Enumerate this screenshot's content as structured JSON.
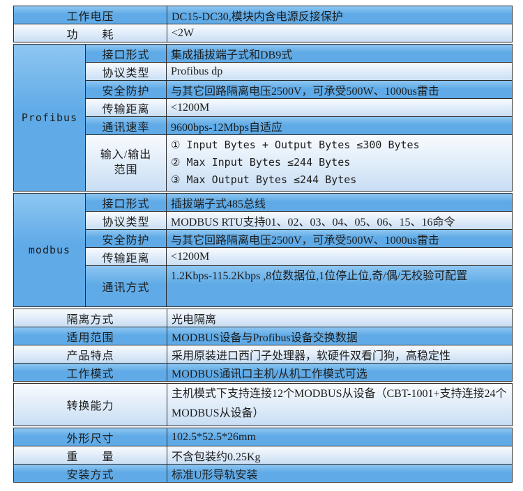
{
  "theme": {
    "row_blue_top": "#8ec6f1",
    "row_blue": "#60abe7",
    "row_light_top": "#f8fbfe",
    "row_light": "#c9def4",
    "border": "#2b2b2b",
    "text": "#1d1d1d",
    "page_bg": "#ffffff"
  },
  "table": {
    "top_rows": [
      {
        "label": "工作电压",
        "value": "DC15-DC30,模块内含电源反接保护"
      },
      {
        "label": "功　　耗",
        "value": "<2W"
      }
    ],
    "profibus": {
      "group_label": "Profibus",
      "rows": [
        {
          "label": "接口形式",
          "value": "集成插拔端子式和DB9式"
        },
        {
          "label": "协议类型",
          "value": "Profibus dp"
        },
        {
          "label": "安全防护",
          "value": "与其它回路隔离电压2500V，可承受500W、1000us雷击"
        },
        {
          "label": "传输距离",
          "value": "<1200M"
        },
        {
          "label": "通讯速率",
          "value": "9600bps-12Mbps自适应"
        }
      ],
      "io_row": {
        "label_line1": "输入/输出",
        "label_line2": "范围",
        "lines": [
          "① Input Bytes + Output Bytes ≤300 Bytes",
          "② Max Input Bytes ≤244 Bytes",
          "③ Max Output Bytes ≤244 Bytes"
        ]
      }
    },
    "modbus": {
      "group_label": "modbus",
      "rows": [
        {
          "label": "接口形式",
          "value": "插拔端子式485总线"
        },
        {
          "label": "协议类型",
          "value": "MODBUS RTU支持01、02、03、04、05、06、15、16命令"
        },
        {
          "label": "安全防护",
          "value": "与其它回路隔离电压2500V，可承受500W、1000us雷击"
        },
        {
          "label": "传输距离",
          "value": "<1200M"
        }
      ],
      "comm_row": {
        "label": "通讯方式",
        "value": "1.2Kbps-115.2Kbps ,8位数据位,1位停止位,奇/偶/无校验可配置"
      }
    },
    "mid_rows": [
      {
        "label": "隔离方式",
        "value": "光电隔离"
      },
      {
        "label": "适用范围",
        "value": "MODBUS设备与Profibus设备交换数据"
      },
      {
        "label": "产品特点",
        "value": "采用原装进口西门子处理器，软硬件双看门狗，高稳定性"
      },
      {
        "label": "工作模式",
        "value": "MODBUS通讯口主机/从机工作模式可选"
      }
    ],
    "convert_row": {
      "label": "转换能力",
      "value": "主机模式下支持连接12个MODBUS从设备（CBT-1001+支持连接24个MODBUS从设备）"
    },
    "bottom_rows": [
      {
        "label": "外形尺寸",
        "value": "102.5*52.5*26mm"
      },
      {
        "label": "重　　量",
        "value": "不含包装约0.25Kg"
      },
      {
        "label": "安装方式",
        "value": "标准U形导轨安装"
      }
    ]
  }
}
